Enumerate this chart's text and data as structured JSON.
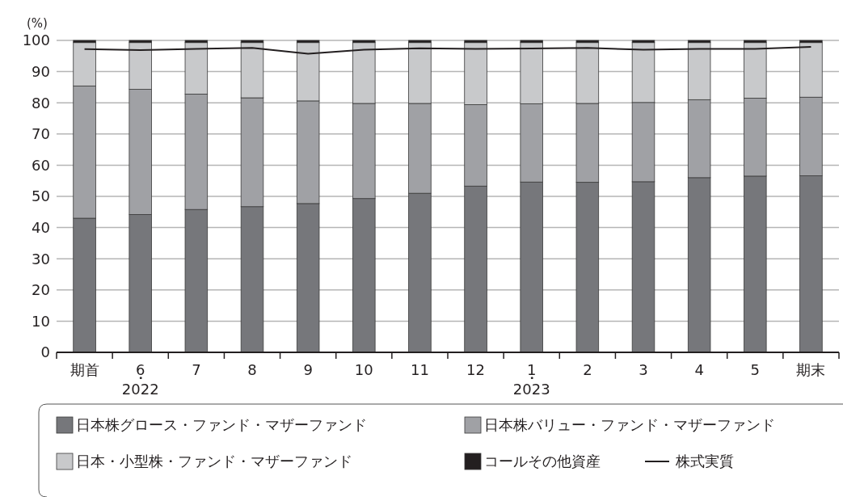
{
  "chart_data": {
    "type": "bar",
    "stacked": true,
    "ylabel": "(%)",
    "categories": [
      "期首",
      "6\n・\n2022",
      "7",
      "8",
      "9",
      "10",
      "11",
      "12",
      "1\n・\n2023",
      "2",
      "3",
      "4",
      "5",
      "期末"
    ],
    "ylim": [
      0,
      100
    ],
    "yticks": [
      0,
      10,
      20,
      30,
      40,
      50,
      60,
      70,
      80,
      90,
      100
    ],
    "grid": "y",
    "legend": "bottom",
    "series": [
      {
        "name": "日本株グロース・ファンド・マザーファンド",
        "color": "#76777b",
        "values": [
          43,
          44.2,
          45.8,
          46.7,
          47.7,
          49.3,
          51,
          53.3,
          54.6,
          54.5,
          54.7,
          56,
          56.5,
          56.6
        ]
      },
      {
        "name": "日本株バリュー・ファンド・マザーファンド",
        "color": "#a0a1a5",
        "values": [
          42.4,
          40.1,
          37,
          34.9,
          32.9,
          30.5,
          28.8,
          26.1,
          25.1,
          25.3,
          25.4,
          25,
          25,
          25.2
        ]
      },
      {
        "name": "日本・小型株・ファンド・マザーファンド",
        "color": "#c8c9cb",
        "values": [
          13.9,
          15,
          16.5,
          17.7,
          18.7,
          19.5,
          19.5,
          19.9,
          19.6,
          19.5,
          19.2,
          18.3,
          17.8,
          17.5
        ]
      },
      {
        "name": "コールその他資産",
        "color": "#231f20",
        "values": [
          0.7,
          0.7,
          0.7,
          0.7,
          0.7,
          0.7,
          0.7,
          0.7,
          0.7,
          0.7,
          0.7,
          0.7,
          0.7,
          0.7
        ]
      },
      {
        "name": "株式実質",
        "type": "line",
        "color": "#231f20",
        "values": [
          97.2,
          96.9,
          97.3,
          97.6,
          95.7,
          97,
          97.5,
          97.3,
          97.4,
          97.6,
          97,
          97.3,
          97.3,
          97.9
        ]
      }
    ]
  }
}
